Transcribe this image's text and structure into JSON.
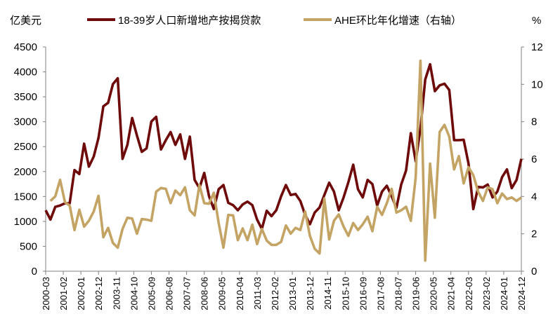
{
  "chart_data": {
    "type": "line",
    "title": "",
    "left_unit": "亿美元",
    "right_unit": "%",
    "legend_position": "top",
    "grid": false,
    "ylim_left": [
      0,
      4500
    ],
    "ylim_right": [
      0,
      12
    ],
    "yticks_left": [
      "0",
      "500",
      "1000",
      "1500",
      "2000",
      "2500",
      "3000",
      "3500",
      "4000",
      "4500"
    ],
    "yticks_right": [
      "0",
      "2",
      "4",
      "6",
      "8",
      "10",
      "12"
    ],
    "xticks": [
      "2000-03",
      "2001-02",
      "2002-01",
      "2002-12",
      "2003-11",
      "2004-10",
      "2005-09",
      "2006-08",
      "2007-07",
      "2008-06",
      "2009-05",
      "2010-04",
      "2011-03",
      "2012-02",
      "2013-01",
      "2013-12",
      "2014-11",
      "2015-10",
      "2016-09",
      "2017-08",
      "2018-07",
      "2019-06",
      "2020-05",
      "2021-04",
      "2022-03",
      "2023-02",
      "2024-01",
      "2024-12"
    ],
    "x": [
      "2000-03",
      "2000-06",
      "2000-09",
      "2000-12",
      "2001-03",
      "2001-06",
      "2001-09",
      "2001-12",
      "2002-03",
      "2002-06",
      "2002-09",
      "2002-12",
      "2003-03",
      "2003-06",
      "2003-09",
      "2003-12",
      "2004-03",
      "2004-06",
      "2004-09",
      "2004-12",
      "2005-03",
      "2005-06",
      "2005-09",
      "2005-12",
      "2006-03",
      "2006-06",
      "2006-09",
      "2006-12",
      "2007-03",
      "2007-06",
      "2007-09",
      "2007-12",
      "2008-03",
      "2008-06",
      "2008-09",
      "2008-12",
      "2009-03",
      "2009-06",
      "2009-09",
      "2009-12",
      "2010-03",
      "2010-06",
      "2010-09",
      "2010-12",
      "2011-03",
      "2011-06",
      "2011-09",
      "2011-12",
      "2012-03",
      "2012-06",
      "2012-09",
      "2012-12",
      "2013-03",
      "2013-06",
      "2013-09",
      "2013-12",
      "2014-03",
      "2014-06",
      "2014-09",
      "2014-12",
      "2015-03",
      "2015-06",
      "2015-09",
      "2015-12",
      "2016-03",
      "2016-06",
      "2016-09",
      "2016-12",
      "2017-03",
      "2017-06",
      "2017-09",
      "2017-12",
      "2018-03",
      "2018-06",
      "2018-09",
      "2018-12",
      "2019-03",
      "2019-06",
      "2019-09",
      "2019-12",
      "2020-03",
      "2020-06",
      "2020-09",
      "2020-12",
      "2021-03",
      "2021-06",
      "2021-09",
      "2021-12",
      "2022-03",
      "2022-06",
      "2022-09",
      "2022-12",
      "2023-03",
      "2023-06",
      "2023-09",
      "2023-12",
      "2024-03",
      "2024-06",
      "2024-09",
      "2024-12"
    ],
    "series": [
      {
        "name": "18-39岁人口新增地产按揭贷款",
        "axis": "left",
        "color": "#6E0A0A",
        "values": [
          1223,
          1036,
          1293,
          1317,
          1364,
          1364,
          2029,
          1950,
          2559,
          2100,
          2301,
          2676,
          3309,
          3379,
          3754,
          3871,
          2254,
          2535,
          3074,
          2723,
          2395,
          2465,
          3004,
          3098,
          2442,
          2629,
          2793,
          2535,
          2746,
          2254,
          2700,
          1832,
          1668,
          1973,
          1504,
          1247,
          1645,
          1729,
          1373,
          1326,
          1223,
          1340,
          1396,
          1326,
          1036,
          848,
          1213,
          1106,
          1223,
          1504,
          1729,
          1528,
          1551,
          1411,
          1130,
          943,
          1177,
          1280,
          1528,
          1776,
          1598,
          1223,
          1481,
          1786,
          2137,
          1645,
          1481,
          1832,
          1748,
          1317,
          1598,
          1715,
          1504,
          1270,
          1739,
          2020,
          2770,
          2207,
          2864,
          3848,
          4152,
          3613,
          3730,
          3763,
          3637,
          2629,
          2629,
          2638,
          2160,
          1247,
          1692,
          1682,
          1739,
          1481,
          1598,
          1889,
          2043,
          1668,
          1832,
          2254
        ]
      },
      {
        "name": "AHE环比年化增速（右轴）",
        "axis": "right",
        "color": "#C4A465",
        "values": [
          null,
          3.76,
          4.01,
          4.89,
          3.7,
          3.51,
          2.2,
          3.29,
          2.39,
          2.7,
          3.2,
          4.04,
          1.82,
          2.32,
          1.51,
          1.26,
          2.26,
          2.86,
          2.82,
          2.01,
          2.79,
          2.76,
          2.7,
          4.26,
          4.45,
          4.41,
          3.64,
          4.32,
          4.07,
          4.49,
          3.26,
          2.99,
          4.61,
          3.64,
          3.61,
          4.2,
          2.58,
          1.26,
          3.01,
          2.99,
          1.66,
          2.29,
          1.66,
          2.49,
          1.45,
          2.26,
          1.64,
          1.41,
          1.41,
          1.57,
          2.45,
          2.01,
          2.32,
          2.2,
          3.2,
          1.89,
          1.2,
          0.95,
          3.89,
          1.7,
          2.7,
          3.04,
          2.39,
          1.89,
          2.58,
          2.2,
          2.51,
          2.92,
          2.14,
          3.45,
          3.01,
          3.64,
          4.41,
          3.14,
          3.26,
          3.45,
          2.7,
          5.01,
          11.26,
          0.57,
          5.76,
          2.86,
          7.45,
          7.83,
          7.2,
          5.45,
          6.16,
          4.7,
          5.57,
          5.14,
          4.26,
          3.76,
          4.49,
          4.39,
          3.64,
          4.16,
          3.86,
          3.95,
          3.76,
          3.95
        ]
      }
    ]
  }
}
